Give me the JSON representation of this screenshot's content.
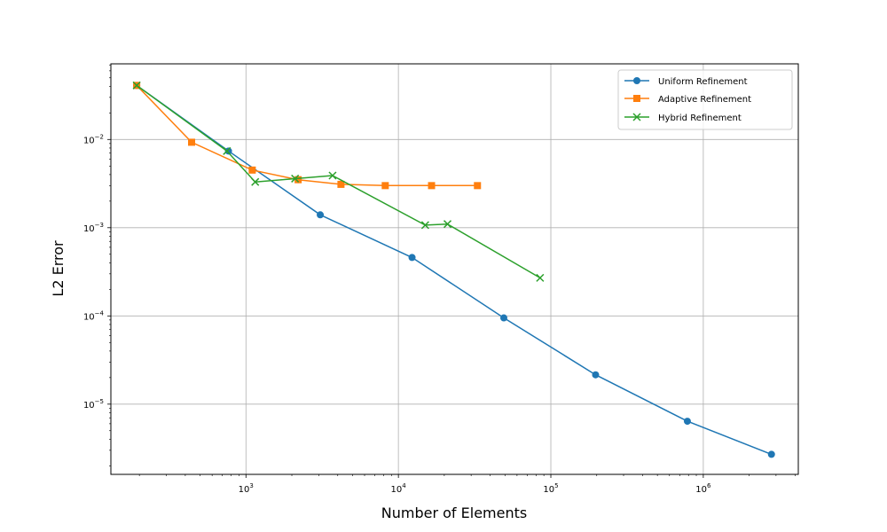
{
  "chart_data": {
    "type": "line",
    "title": "",
    "xlabel": "Number of Elements",
    "ylabel": "L2 Error",
    "xscale": "log",
    "yscale": "log",
    "xlim": [
      130,
      4200000
    ],
    "ylim": [
      1.6e-06,
      0.072
    ],
    "grid": true,
    "legend_position": "top-right",
    "x_ticks": [
      {
        "value": 1000,
        "base": "10",
        "exp": "3"
      },
      {
        "value": 10000,
        "base": "10",
        "exp": "4"
      },
      {
        "value": 100000,
        "base": "10",
        "exp": "5"
      },
      {
        "value": 1000000,
        "base": "10",
        "exp": "6"
      }
    ],
    "y_ticks": [
      {
        "value": 0.01,
        "base": "10",
        "exp": "−2"
      },
      {
        "value": 0.001,
        "base": "10",
        "exp": "−3"
      },
      {
        "value": 0.0001,
        "base": "10",
        "exp": "−4"
      },
      {
        "value": 1e-05,
        "base": "10",
        "exp": "−5"
      }
    ],
    "series": [
      {
        "name": "Uniform Refinement",
        "color": "#1f77b4",
        "marker": "circle",
        "points": [
          [
            192,
            0.041
          ],
          [
            768,
            0.0074
          ],
          [
            3072,
            0.0014
          ],
          [
            12288,
            0.00046
          ],
          [
            49152,
            9.5e-05
          ],
          [
            196608,
            2.15e-05
          ],
          [
            786432,
            6.4e-06
          ],
          [
            2800000,
            2.7e-06
          ]
        ]
      },
      {
        "name": "Adaptive Refinement",
        "color": "#ff7f0e",
        "marker": "square",
        "points": [
          [
            192,
            0.041
          ],
          [
            440,
            0.0093
          ],
          [
            1100,
            0.0045
          ],
          [
            2200,
            0.0035
          ],
          [
            4200,
            0.0031
          ],
          [
            8200,
            0.003
          ],
          [
            16500,
            0.003
          ],
          [
            33000,
            0.003
          ]
        ]
      },
      {
        "name": "Hybrid Refinement",
        "color": "#2ca02c",
        "marker": "x",
        "points": [
          [
            192,
            0.041
          ],
          [
            750,
            0.0074
          ],
          [
            1150,
            0.0033
          ],
          [
            2100,
            0.0036
          ],
          [
            3700,
            0.0039
          ],
          [
            15000,
            0.00107
          ],
          [
            21000,
            0.0011
          ],
          [
            85000,
            0.00027
          ]
        ]
      }
    ]
  }
}
